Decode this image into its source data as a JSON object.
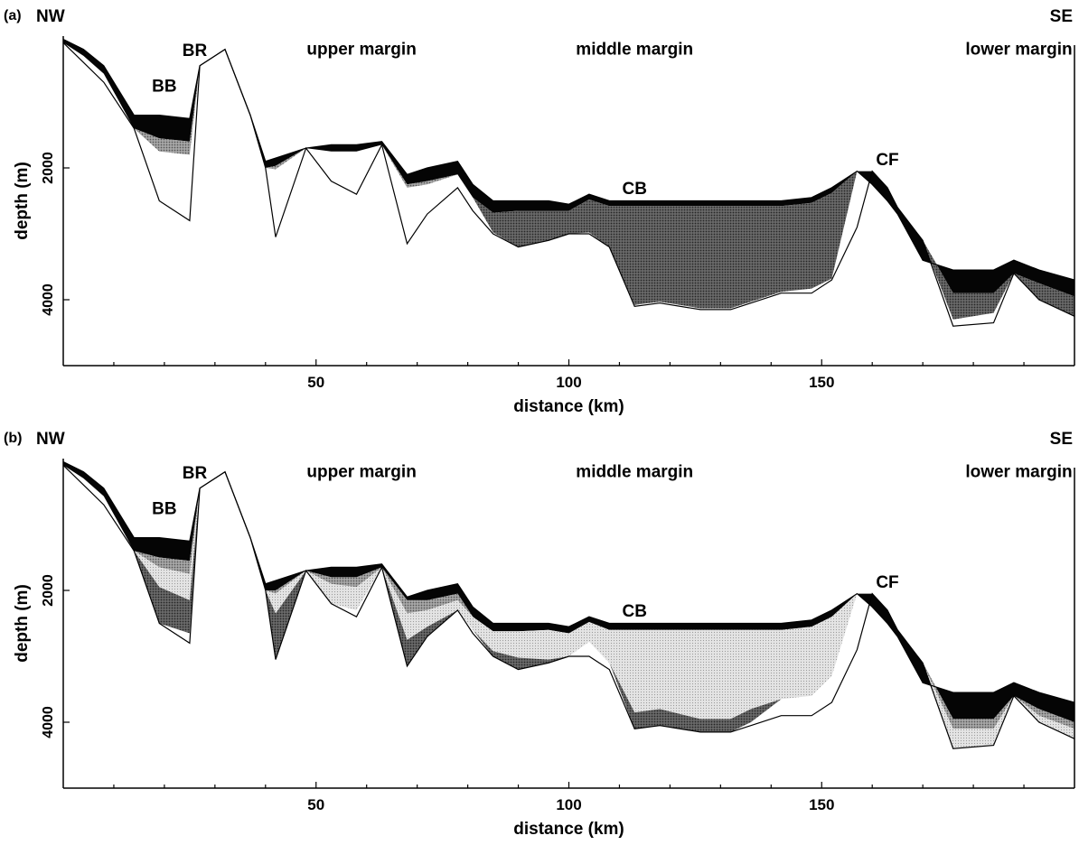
{
  "chart_data": [
    {
      "type": "area",
      "panel_label": "(a)",
      "xlabel": "distance (km)",
      "ylabel": "depth (m)",
      "xlim": [
        0,
        200
      ],
      "ylim": [
        5000,
        0
      ],
      "xticks": [
        50,
        100,
        150
      ],
      "yticks": [
        2000,
        4000
      ],
      "grid": false,
      "left_label": "NW",
      "right_label": "SE",
      "annotations": [
        {
          "text": "BR",
          "x": 26,
          "y": 300
        },
        {
          "text": "BB",
          "x": 20,
          "y": 840
        },
        {
          "text": "upper margin",
          "x": 59,
          "y": 280
        },
        {
          "text": "middle margin",
          "x": 113,
          "y": 280
        },
        {
          "text": "lower margin",
          "x": 189,
          "y": 280
        },
        {
          "text": "CB",
          "x": 113,
          "y": 2400
        },
        {
          "text": "CF",
          "x": 163,
          "y": 1960
        }
      ],
      "seafloor": {
        "x": [
          0,
          4,
          8,
          14,
          19,
          25,
          27,
          32,
          37,
          40,
          42,
          48,
          53,
          58,
          63,
          68,
          72,
          78,
          81,
          85,
          90,
          96,
          100,
          104,
          108,
          113,
          118,
          126,
          132,
          136,
          142,
          148,
          152,
          157,
          160,
          163,
          165,
          170,
          176,
          184,
          188,
          193,
          200
        ],
        "y": [
          50,
          200,
          450,
          1200,
          1200,
          1250,
          450,
          200,
          1200,
          1900,
          1850,
          1700,
          1650,
          1650,
          1600,
          2100,
          2000,
          1900,
          2250,
          2500,
          2500,
          2500,
          2550,
          2400,
          2500,
          2500,
          2500,
          2500,
          2500,
          2500,
          2500,
          2450,
          2300,
          2050,
          2250,
          2500,
          2700,
          3400,
          3550,
          3550,
          3400,
          3550,
          3700
        ]
      },
      "basement": {
        "x": [
          0,
          4,
          8,
          14,
          19,
          25,
          27,
          32,
          37,
          40,
          42,
          48,
          53,
          58,
          63,
          68,
          72,
          78,
          81,
          85,
          90,
          96,
          100,
          104,
          108,
          113,
          118,
          126,
          132,
          136,
          142,
          148,
          152,
          157,
          160,
          163,
          165,
          170,
          176,
          184,
          188,
          193,
          200
        ],
        "y": [
          100,
          400,
          700,
          1400,
          2500,
          2800,
          450,
          200,
          1200,
          2000,
          3050,
          1700,
          2200,
          2400,
          1650,
          3150,
          2700,
          2300,
          2650,
          3000,
          3200,
          3100,
          3000,
          3000,
          3200,
          4100,
          4050,
          4150,
          4150,
          4050,
          3900,
          3900,
          3700,
          2900,
          2050,
          2300,
          2600,
          3100,
          4400,
          4350,
          3600,
          4000,
          4250
        ]
      },
      "sediment_layers": [
        {
          "shade": "black",
          "top": "seafloor",
          "thickness": [
            50,
            100,
            120,
            200,
            350,
            350,
            0,
            0,
            0,
            100,
            120,
            0,
            100,
            100,
            100,
            150,
            200,
            200,
            200,
            180,
            150,
            150,
            100,
            80,
            80,
            80,
            80,
            80,
            80,
            80,
            80,
            80,
            80,
            0,
            50,
            80,
            120,
            350,
            350,
            350,
            200,
            200,
            250
          ]
        },
        {
          "shade": "dark-stipple",
          "top": "black",
          "thickness": [
            0,
            0,
            0,
            0,
            0,
            0,
            0,
            0,
            0,
            0,
            0,
            0,
            0,
            0,
            0,
            0,
            0,
            0,
            0,
            300,
            600,
            500,
            400,
            500,
            650,
            1500,
            1450,
            1550,
            1550,
            1450,
            1300,
            1300,
            1300,
            0,
            0,
            100,
            200,
            300,
            400,
            300,
            100,
            300,
            300
          ]
        },
        {
          "shade": "medium-stipple",
          "top": "dark-stipple",
          "thickness": [
            0,
            0,
            0,
            0,
            200,
            200,
            0,
            0,
            0,
            0,
            50,
            0,
            0,
            0,
            0,
            50,
            50,
            0,
            0,
            0,
            0,
            0,
            0,
            0,
            0,
            0,
            0,
            0,
            0,
            0,
            0,
            0,
            0,
            0,
            0,
            0,
            0,
            0,
            0,
            0,
            0,
            0,
            0
          ]
        },
        {
          "shade": "light-stipple",
          "top": "medium-stipple",
          "thickness": [
            0,
            0,
            0,
            0,
            0,
            0,
            0,
            0,
            0,
            0,
            0,
            0,
            0,
            0,
            0,
            0,
            0,
            0,
            0,
            0,
            0,
            0,
            0,
            0,
            0,
            0,
            0,
            0,
            0,
            0,
            0,
            0,
            0,
            0,
            0,
            0,
            0,
            0,
            0,
            0,
            0,
            0,
            0
          ]
        }
      ]
    },
    {
      "type": "area",
      "panel_label": "(b)",
      "xlabel": "distance (km)",
      "ylabel": "depth (m)",
      "xlim": [
        0,
        200
      ],
      "ylim": [
        5000,
        0
      ],
      "xticks": [
        50,
        100,
        150
      ],
      "yticks": [
        2000,
        4000
      ],
      "grid": false,
      "left_label": "NW",
      "right_label": "SE",
      "annotations": [
        {
          "text": "BR",
          "x": 26,
          "y": 300
        },
        {
          "text": "BB",
          "x": 20,
          "y": 840
        },
        {
          "text": "upper margin",
          "x": 59,
          "y": 280
        },
        {
          "text": "middle margin",
          "x": 113,
          "y": 280
        },
        {
          "text": "lower margin",
          "x": 189,
          "y": 280
        },
        {
          "text": "CB",
          "x": 113,
          "y": 2400
        },
        {
          "text": "CF",
          "x": 163,
          "y": 1960
        }
      ],
      "seafloor": {
        "x": [
          0,
          4,
          8,
          14,
          19,
          25,
          27,
          32,
          37,
          40,
          42,
          48,
          53,
          58,
          63,
          68,
          72,
          78,
          81,
          85,
          90,
          96,
          100,
          104,
          108,
          113,
          118,
          126,
          132,
          136,
          142,
          148,
          152,
          157,
          160,
          163,
          165,
          170,
          176,
          184,
          188,
          193,
          200
        ],
        "y": [
          50,
          200,
          450,
          1200,
          1200,
          1250,
          450,
          200,
          1200,
          1900,
          1850,
          1700,
          1650,
          1650,
          1600,
          2100,
          2000,
          1900,
          2250,
          2500,
          2500,
          2500,
          2550,
          2400,
          2500,
          2500,
          2500,
          2500,
          2500,
          2500,
          2500,
          2450,
          2300,
          2050,
          2250,
          2500,
          2700,
          3400,
          3550,
          3550,
          3400,
          3550,
          3700
        ]
      },
      "basement": {
        "x": [
          0,
          4,
          8,
          14,
          19,
          25,
          27,
          32,
          37,
          40,
          42,
          48,
          53,
          58,
          63,
          68,
          72,
          78,
          81,
          85,
          90,
          96,
          100,
          104,
          108,
          113,
          118,
          126,
          132,
          136,
          142,
          148,
          152,
          157,
          160,
          163,
          165,
          170,
          176,
          184,
          188,
          193,
          200
        ],
        "y": [
          100,
          400,
          700,
          1400,
          2500,
          2800,
          450,
          200,
          1200,
          2000,
          3050,
          1700,
          2200,
          2400,
          1650,
          3150,
          2700,
          2300,
          2650,
          3000,
          3200,
          3100,
          3000,
          3000,
          3200,
          4100,
          4050,
          4150,
          4150,
          4050,
          3900,
          3900,
          3700,
          2900,
          2050,
          2300,
          2600,
          3100,
          4400,
          4350,
          3600,
          4000,
          4250
        ]
      },
      "sediment_layers": [
        {
          "shade": "black",
          "top": "seafloor",
          "thickness": [
            50,
            100,
            120,
            200,
            300,
            300,
            0,
            0,
            0,
            150,
            150,
            0,
            150,
            150,
            150,
            50,
            150,
            150,
            150,
            120,
            120,
            100,
            100,
            80,
            100,
            100,
            100,
            100,
            100,
            100,
            100,
            100,
            100,
            0,
            60,
            100,
            150,
            400,
            400,
            400,
            250,
            250,
            300
          ]
        },
        {
          "shade": "medium-stipple",
          "top": "black",
          "thickness": [
            0,
            0,
            0,
            0,
            150,
            200,
            0,
            0,
            0,
            0,
            50,
            0,
            100,
            150,
            0,
            200,
            150,
            100,
            0,
            0,
            0,
            0,
            0,
            0,
            0,
            0,
            0,
            0,
            0,
            0,
            0,
            0,
            0,
            0,
            0,
            50,
            100,
            100,
            150,
            150,
            50,
            100,
            100
          ]
        },
        {
          "shade": "light-stipple",
          "top": "medium-stipple",
          "thickness": [
            0,
            0,
            0,
            0,
            300,
            400,
            0,
            0,
            0,
            0,
            300,
            0,
            300,
            350,
            0,
            400,
            250,
            150,
            200,
            300,
            400,
            450,
            400,
            300,
            500,
            1250,
            1200,
            1350,
            1350,
            1200,
            1050,
            1050,
            900,
            0,
            0,
            50,
            50,
            300,
            300,
            300,
            50,
            200,
            200
          ]
        },
        {
          "shade": "dark-stipple",
          "top": "light-stipple",
          "thickness": [
            0,
            0,
            0,
            0,
            550,
            500,
            0,
            0,
            0,
            0,
            700,
            0,
            0,
            0,
            0,
            700,
            300,
            0,
            0,
            80,
            180,
            150,
            0,
            0,
            0,
            250,
            250,
            200,
            200,
            200,
            0,
            0,
            0,
            0,
            0,
            0,
            0,
            0,
            400,
            300,
            0,
            0,
            0
          ]
        }
      ]
    }
  ]
}
